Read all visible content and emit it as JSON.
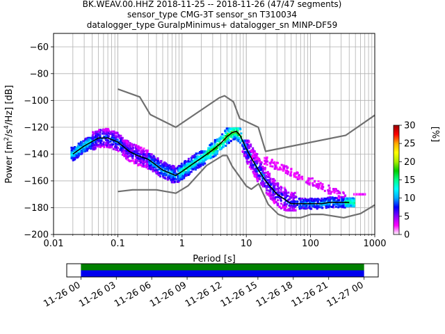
{
  "title_lines": [
    "BK.WEAV.00.HHZ   2018-11-25 -- 2018-11-26  (47/47 segments)",
    "sensor_type CMG-3T sensor_sn T310034",
    "datalogger_type GuralpMinimus+ datalogger_sn MINP-DF59"
  ],
  "chart_data": [
    {
      "type": "heatmap",
      "title": "",
      "xlabel": "Period [s]",
      "ylabel": "Power [m2/s4/Hz] [dB]",
      "xscale": "log",
      "xlim": [
        0.01,
        1000
      ],
      "ylim": [
        -200,
        -50
      ],
      "x_tick_labels": [
        "0.01",
        "0.1",
        "1",
        "10",
        "100",
        "1000"
      ],
      "x_tick_values": [
        0.01,
        0.1,
        1,
        10,
        100,
        1000
      ],
      "y_ticks": [
        -200,
        -180,
        -160,
        -140,
        -120,
        -100,
        -80,
        -60
      ],
      "grid": true,
      "colorbar": {
        "label": "[%]",
        "range": [
          0,
          30
        ],
        "ticks": [
          0,
          5,
          10,
          15,
          20,
          25,
          30
        ],
        "colormap": [
          "#ffffff",
          "#ff00ff",
          "#8800ff",
          "#0000ff",
          "#00aaff",
          "#00ffff",
          "#00ff88",
          "#00cc00",
          "#aaee00",
          "#ffff00",
          "#ffaa00",
          "#ff0000",
          "#990000"
        ]
      },
      "series": [
        {
          "name": "",
          "role": "mode",
          "color": "#000000",
          "x": [
            0.02,
            0.03,
            0.05,
            0.07,
            0.1,
            0.15,
            0.2,
            0.3,
            0.5,
            0.8,
            1.0,
            1.5,
            2,
            3,
            4,
            5,
            6,
            7,
            8,
            10,
            12,
            15,
            20,
            30,
            50,
            70,
            100,
            150,
            200,
            300,
            400
          ],
          "y": [
            -140,
            -134,
            -128,
            -128,
            -131,
            -138,
            -141,
            -144,
            -152,
            -156,
            -153,
            -147,
            -143,
            -137,
            -132,
            -127,
            -124,
            -123,
            -126,
            -136,
            -143,
            -151,
            -160,
            -170,
            -177,
            -177,
            -177,
            -177,
            -176,
            -176,
            -176
          ]
        },
        {
          "name": "",
          "role": "noise-model-high",
          "color": "#6f6f6f",
          "x": [
            0.1,
            0.22,
            0.32,
            0.8,
            3.8,
            4.6,
            6.3,
            7.9,
            15.4,
            20,
            354.8,
            1000
          ],
          "y": [
            -91.5,
            -97.4,
            -110.5,
            -120,
            -98,
            -96.5,
            -101,
            -113.5,
            -120,
            -138,
            -126,
            -111
          ]
        },
        {
          "name": "",
          "role": "noise-model-low",
          "color": "#6f6f6f",
          "x": [
            0.1,
            0.17,
            0.4,
            0.8,
            1.24,
            2.4,
            4.3,
            5,
            6,
            10,
            12,
            15.6,
            21.9,
            31.6,
            45,
            70,
            101,
            154,
            328,
            600,
            1000
          ],
          "y": [
            -168,
            -166.7,
            -166.7,
            -169.2,
            -163.7,
            -148.6,
            -141.1,
            -141.1,
            -149,
            -163.8,
            -166.2,
            -162.1,
            -177.5,
            -185,
            -187.5,
            -187.5,
            -185,
            -185,
            -187.5,
            -184.4,
            -178
          ]
        }
      ],
      "pdf_clusters": [
        {
          "x": [
            0.019,
            0.04
          ],
          "y": [
            -146,
            -128
          ],
          "level": 12
        },
        {
          "x": [
            0.04,
            0.12
          ],
          "y": [
            -145,
            -120
          ],
          "level": 8
        },
        {
          "x": [
            0.12,
            0.3
          ],
          "y": [
            -156,
            -130
          ],
          "level": 6
        },
        {
          "x": [
            0.3,
            0.9
          ],
          "y": [
            -163,
            -140
          ],
          "level": 10
        },
        {
          "x": [
            0.9,
            2.5
          ],
          "y": [
            -160,
            -138
          ],
          "level": 14
        },
        {
          "x": [
            2.5,
            8.5
          ],
          "y": [
            -143,
            -121
          ],
          "level": 18
        },
        {
          "x": [
            8.5,
            20
          ],
          "y": [
            -164,
            -130
          ],
          "level": 9
        },
        {
          "x": [
            20,
            60
          ],
          "y": [
            -182,
            -150
          ],
          "level": 7
        },
        {
          "x": [
            60,
            350
          ],
          "y": [
            -182,
            -168
          ],
          "level": 9
        },
        {
          "x": [
            350,
            480
          ],
          "y": [
            -179,
            -168
          ],
          "level": 14
        },
        {
          "x": [
            480,
            700
          ],
          "y": [
            -170,
            -155
          ],
          "level": 4
        }
      ]
    },
    {
      "type": "bar",
      "title": "",
      "role": "data-coverage",
      "x_tick_labels": [
        "11-26 00",
        "11-26 03",
        "11-26 06",
        "11-26 09",
        "11-26 12",
        "11-26 15",
        "11-26 18",
        "11-26 21",
        "11-27 00"
      ],
      "x_tick_hours": [
        0,
        3,
        6,
        9,
        12,
        15,
        18,
        21,
        24
      ],
      "xlim_hours": [
        -1.2,
        25.2
      ],
      "bars": [
        {
          "start_hour": 0,
          "end_hour": 24,
          "color": "#008000"
        },
        {
          "start_hour": 0,
          "end_hour": 24,
          "color": "#0000ee"
        }
      ]
    }
  ]
}
